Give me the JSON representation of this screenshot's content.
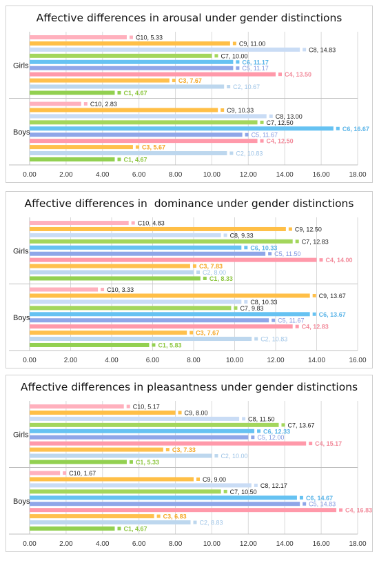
{
  "chart_data": [
    {
      "type": "bar",
      "orientation": "horizontal",
      "title": "Affective differences in arousal under gender distinctions",
      "groups": [
        "Girls",
        "Boys"
      ],
      "series_order": [
        "C1",
        "C2",
        "C3",
        "C4",
        "C5",
        "C6",
        "C7",
        "C8",
        "C9",
        "C10"
      ],
      "xlim": [
        0,
        18
      ],
      "xticks": [
        "0.00",
        "2.00",
        "4.00",
        "6.00",
        "8.00",
        "10.00",
        "12.00",
        "14.00",
        "16.00",
        "18.00"
      ],
      "grid": true,
      "values": {
        "Girls": [
          4.67,
          10.67,
          7.67,
          13.5,
          11.17,
          11.17,
          10.0,
          14.83,
          11.0,
          5.33
        ],
        "Boys": [
          4.67,
          10.83,
          5.67,
          12.5,
          11.67,
          16.67,
          12.5,
          13.0,
          10.33,
          2.83
        ]
      },
      "labels": {
        "Girls": [
          "C1, 4.67",
          "C2, 10.67",
          "C3, 7.67",
          "C4, 13.50",
          "C5, 11.17",
          "C6, 11.17",
          "C7, 10.00",
          "C8, 14.83",
          "C9, 11.00",
          "C10, 5.33"
        ],
        "Boys": [
          "C1, 4.67",
          "C2, 10.83",
          "C3, 5.67",
          "C4, 12.50",
          "C5, 11.67",
          "C6, 16.67",
          "C7, 12.50",
          "C8, 13.00",
          "C9, 10.33",
          "C10, 2.83"
        ]
      }
    },
    {
      "type": "bar",
      "orientation": "horizontal",
      "title": "Affective differences in  dominance under gender distinctions",
      "groups": [
        "Girls",
        "Boys"
      ],
      "series_order": [
        "C1",
        "C2",
        "C3",
        "C4",
        "C5",
        "C6",
        "C7",
        "C8",
        "C9",
        "C10"
      ],
      "xlim": [
        0,
        16
      ],
      "xticks": [
        "0.00",
        "2.00",
        "4.00",
        "6.00",
        "8.00",
        "10.00",
        "12.00",
        "14.00",
        "16.00"
      ],
      "grid": true,
      "values": {
        "Girls": [
          8.33,
          8.0,
          7.83,
          14.0,
          11.5,
          10.33,
          12.83,
          9.33,
          12.5,
          4.83
        ],
        "Boys": [
          5.83,
          10.83,
          7.67,
          12.83,
          11.67,
          13.67,
          9.83,
          10.33,
          13.67,
          3.33
        ]
      },
      "labels": {
        "Girls": [
          "C1, 8.33",
          "C2, 8.00",
          "C3, 7.83",
          "C4, 14.00",
          "C5, 11.50",
          "C6, 10.33",
          "C7, 12.83",
          "C8, 9.33",
          "C9, 12.50",
          "C10, 4.83"
        ],
        "Boys": [
          "C1, 5.83",
          "C2, 10.83",
          "C3, 7.67",
          "C4, 12.83",
          "C5, 11.67",
          "C6, 13.67",
          "C7, 9.83",
          "C8, 10.33",
          "C9, 13.67",
          "C10, 3.33"
        ]
      }
    },
    {
      "type": "bar",
      "orientation": "horizontal",
      "title": "Affective differences in pleasantness under gender distinctions",
      "groups": [
        "Girls",
        "Boys"
      ],
      "series_order": [
        "C1",
        "C2",
        "C3",
        "C4",
        "C5",
        "C6",
        "C7",
        "C8",
        "C9",
        "C10"
      ],
      "xlim": [
        0,
        18
      ],
      "xticks": [
        "0.00",
        "2.00",
        "4.00",
        "6.00",
        "8.00",
        "10.00",
        "12.00",
        "14.00",
        "16.00",
        "18.00"
      ],
      "grid": true,
      "values": {
        "Girls": [
          5.33,
          10.0,
          7.33,
          15.17,
          12.0,
          12.33,
          13.67,
          11.5,
          8.0,
          5.17
        ],
        "Boys": [
          4.67,
          8.83,
          6.83,
          16.83,
          14.83,
          14.67,
          10.5,
          12.17,
          9.0,
          1.67
        ]
      },
      "labels": {
        "Girls": [
          "C1, 5.33",
          "C2, 10.00",
          "C3, 7.33",
          "C4, 15.17",
          "C5, 12.00",
          "C6, 12.33",
          "C7, 13.67",
          "C8, 11.50",
          "C9, 8.00",
          "C10, 5.17"
        ],
        "Boys": [
          "C1, 4.67",
          "C2, 8.83",
          "C3, 6.83",
          "C4, 16.83",
          "C5, 14.83",
          "C6, 14.67",
          "C7, 10.50",
          "C8, 12.17",
          "C9, 9.00",
          "C10, 1.67"
        ]
      }
    }
  ],
  "colors": {
    "C1": {
      "bar": "#92d050",
      "label": "#8cc63f",
      "bold": true
    },
    "C2": {
      "bar": "#bdd7ee",
      "label": "#9dc3e6",
      "bold": false
    },
    "C3": {
      "bar": "#ffc04d",
      "label": "#f5a623",
      "bold": true
    },
    "C4": {
      "bar": "#ff99aa",
      "label": "#f28b9b",
      "bold": true
    },
    "C5": {
      "bar": "#8fa6e8",
      "label": "#7f96e0",
      "bold": false
    },
    "C6": {
      "bar": "#66c2f2",
      "label": "#5ab4e8",
      "bold": true
    },
    "C7": {
      "bar": "#a3d65c",
      "label": "#222222",
      "bold": false
    },
    "C8": {
      "bar": "#c9dcf5",
      "label": "#222222",
      "bold": false
    },
    "C9": {
      "bar": "#ffbf47",
      "label": "#222222",
      "bold": false
    },
    "C10": {
      "bar": "#ffb0bd",
      "label": "#222222",
      "bold": false
    },
    "grid": "#d9d9d9",
    "axis": "#bfbfbf"
  }
}
